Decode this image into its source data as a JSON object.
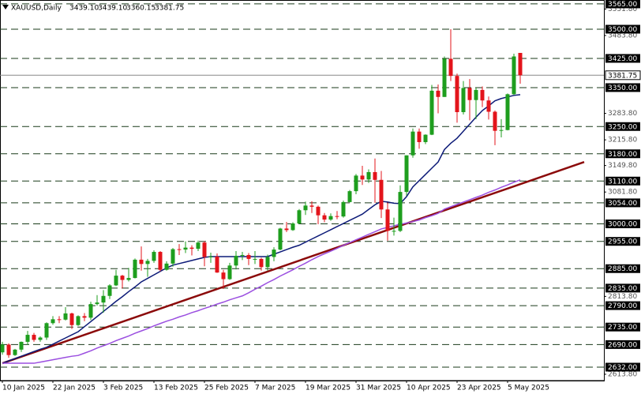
{
  "chart_data": {
    "type": "candlestick",
    "header": {
      "symbol": "XAUUSD,Daily",
      "ohlc": [
        "3439.10",
        "3439.10",
        "3360.15",
        "3381.75"
      ]
    },
    "categories": [
      "10 Jan 2025",
      null,
      null,
      null,
      null,
      null,
      null,
      null,
      "22 Jan 2025",
      null,
      null,
      null,
      null,
      null,
      null,
      null,
      "3 Feb 2025",
      null,
      null,
      null,
      null,
      null,
      null,
      null,
      "13 Feb 2025",
      null,
      null,
      null,
      null,
      null,
      null,
      null,
      "25 Feb 2025",
      null,
      null,
      null,
      null,
      null,
      null,
      null,
      "7 Mar 2025",
      null,
      null,
      null,
      null,
      null,
      null,
      null,
      "19 Mar 2025",
      null,
      null,
      null,
      null,
      null,
      null,
      null,
      "31 Mar 2025",
      null,
      null,
      null,
      null,
      null,
      null,
      null,
      "10 Apr 2025",
      null,
      null,
      null,
      null,
      null,
      null,
      null,
      "23 Apr 2025",
      null,
      null,
      null,
      null,
      null,
      null,
      null,
      "5 May 2025",
      null,
      null
    ],
    "open": [
      2670,
      2690,
      2663,
      2677,
      2697,
      2715,
      2702,
      2708,
      2745,
      2755,
      2754,
      2770,
      2740,
      2763,
      2759,
      2794,
      2798,
      2815,
      2842,
      2867,
      2856,
      2861,
      2908,
      2897,
      2905,
      2928,
      2882,
      2898,
      2935,
      2934,
      2939,
      2936,
      2952,
      2915,
      2916,
      2875,
      2858,
      2893,
      2918,
      2920,
      2910,
      2910,
      2889,
      2915,
      2934,
      2988,
      2984,
      3001,
      3035,
      3047,
      3044,
      3022,
      3011,
      3020,
      3019,
      3056,
      3084,
      3124,
      3114,
      3133,
      3113,
      3037,
      2982,
      2982,
      3082,
      3176,
      3237,
      3210,
      3229,
      3342,
      3326,
      3424,
      3380,
      3287,
      3349,
      3318,
      3344,
      3317,
      3288,
      3239,
      3241,
      3333,
      3439.1
    ],
    "high": [
      2697,
      2693,
      2679,
      2698,
      2725,
      2720,
      2711,
      2747,
      2763,
      2763,
      2786,
      2772,
      2765,
      2771,
      2800,
      2817,
      2830,
      2845,
      2882,
      2869,
      2887,
      2911,
      2942,
      2910,
      2932,
      2930,
      2904,
      2938,
      2948,
      2955,
      2945,
      2957,
      2956,
      2926,
      2924,
      2882,
      2900,
      2930,
      2928,
      2925,
      2930,
      2913,
      2921,
      2940,
      2990,
      3005,
      3004,
      3038,
      3057,
      3058,
      3047,
      3028,
      3027,
      3033,
      3060,
      3087,
      3128,
      3149,
      3140,
      3168,
      3136,
      3055,
      3016,
      3099,
      3176,
      3245,
      3245,
      3230,
      3357,
      3358,
      3430,
      3500,
      3386,
      3367,
      3372,
      3350,
      3353,
      3327,
      3291,
      3269,
      3335,
      3437,
      3439.1
    ],
    "low": [
      2664,
      2656,
      2661,
      2671,
      2689,
      2697,
      2697,
      2702,
      2741,
      2745,
      2752,
      2730,
      2738,
      2750,
      2753,
      2790,
      2772,
      2807,
      2840,
      2834,
      2852,
      2860,
      2880,
      2864,
      2900,
      2878,
      2880,
      2890,
      2920,
      2925,
      2919,
      2930,
      2891,
      2900,
      2874,
      2833,
      2856,
      2883,
      2907,
      2894,
      2897,
      2880,
      2880,
      2904,
      2932,
      2979,
      2982,
      2999,
      3023,
      3028,
      2999,
      3004,
      3008,
      3012,
      3016,
      3055,
      3076,
      3100,
      3105,
      3054,
      3015,
      2957,
      2970,
      2979,
      3072,
      3170,
      3193,
      3205,
      3228,
      3284,
      3326,
      3367,
      3260,
      3281,
      3266,
      3269,
      3300,
      3268,
      3202,
      3222,
      3240,
      3331,
      3360.15
    ],
    "close": [
      2690,
      2663,
      2677,
      2697,
      2715,
      2702,
      2708,
      2745,
      2755,
      2754,
      2770,
      2740,
      2763,
      2759,
      2794,
      2798,
      2815,
      2842,
      2867,
      2856,
      2861,
      2908,
      2897,
      2905,
      2928,
      2882,
      2898,
      2935,
      2934,
      2939,
      2936,
      2952,
      2915,
      2916,
      2875,
      2858,
      2893,
      2918,
      2920,
      2910,
      2910,
      2889,
      2915,
      2934,
      2988,
      2984,
      3001,
      3035,
      3047,
      3044,
      3022,
      3011,
      3020,
      3019,
      3056,
      3084,
      3124,
      3114,
      3133,
      3113,
      3037,
      2982,
      2982,
      3082,
      3176,
      3237,
      3210,
      3229,
      3342,
      3326,
      3424,
      3380,
      3287,
      3349,
      3318,
      3344,
      3317,
      3288,
      3239,
      3241,
      3333,
      3430,
      3381.75
    ],
    "colors": {
      "up": "#1e9e1e",
      "down": "#e3141b"
    },
    "lines": [
      {
        "color": "#0d1b78",
        "values": [
          2642,
          2648,
          2654,
          2660,
          2666,
          2672,
          2678,
          2683,
          2691,
          2699,
          2707,
          2715,
          2723,
          2736,
          2749,
          2762,
          2775,
          2788,
          2801,
          2813,
          2826,
          2838,
          2851,
          2860,
          2869,
          2878,
          2887,
          2894,
          2898,
          2902,
          2906,
          2910,
          2914,
          2916,
          2916,
          2916,
          2916,
          2916,
          2916,
          2916,
          2916,
          2916,
          2916,
          2922,
          2928,
          2934,
          2940,
          2945,
          2953,
          2961,
          2969,
          2977,
          2985,
          2993,
          3001,
          3009,
          3017,
          3025,
          3037,
          3049,
          3058,
          3056,
          3053,
          3052,
          3070,
          3095,
          3111,
          3127,
          3143,
          3159,
          3191,
          3207,
          3220,
          3238,
          3256,
          3274,
          3291,
          3303,
          3316,
          3322,
          3326,
          3330,
          3332
        ]
      },
      {
        "color": "#9b4fe0",
        "values": [
          2642,
          2642,
          2642,
          2642,
          2642,
          2642,
          2645,
          2648,
          2651,
          2654,
          2657,
          2660,
          2662,
          2668,
          2674,
          2681,
          2687,
          2693,
          2700,
          2706,
          2712,
          2719,
          2725,
          2731,
          2738,
          2744,
          2750,
          2755,
          2761,
          2766,
          2772,
          2777,
          2783,
          2788,
          2794,
          2799,
          2805,
          2810,
          2815,
          2823,
          2832,
          2840,
          2849,
          2857,
          2866,
          2874,
          2882,
          2891,
          2899,
          2908,
          2916,
          2923,
          2930,
          2937,
          2945,
          2952,
          2959,
          2966,
          2973,
          2980,
          2987,
          2991,
          2995,
          2999,
          3002,
          3006,
          3010,
          3016,
          3021,
          3027,
          3038,
          3044,
          3050,
          3056,
          3062,
          3068,
          3074,
          3081,
          3087,
          3094,
          3100,
          3107,
          3113
        ]
      }
    ],
    "trendline": {
      "color": "#8b0a0a",
      "values": [
        2642,
        3102
      ]
    },
    "ylim": [
      2597.5,
      3575
    ],
    "yticks": [
      {
        "value": 3551.8,
        "label": "3551.80"
      },
      {
        "value": 3483.8,
        "label": "3483.80"
      },
      {
        "value": 3283.8,
        "label": "3283.80"
      },
      {
        "value": 3215.8,
        "label": "3215.80"
      },
      {
        "value": 3149.8,
        "label": "3149.80"
      },
      {
        "value": 3081.8,
        "label": "3081.80"
      },
      {
        "value": 2813.8,
        "label": "2813.80"
      },
      {
        "value": 2613.8,
        "label": "2613.80"
      }
    ],
    "levels": [
      {
        "value": 3565,
        "label": "3565.00"
      },
      {
        "value": 3500,
        "label": "3500.00"
      },
      {
        "value": 3425,
        "label": "3425.00"
      },
      {
        "value": 3350,
        "label": "3350.00"
      },
      {
        "value": 3250,
        "label": "3250.00"
      },
      {
        "value": 3180,
        "label": "3180.00"
      },
      {
        "value": 3110,
        "label": "3110.00"
      },
      {
        "value": 3054,
        "label": "3054.00"
      },
      {
        "value": 3000,
        "label": "3000.00"
      },
      {
        "value": 2955,
        "label": "2955.00"
      },
      {
        "value": 2885,
        "label": "2885.00"
      },
      {
        "value": 2835,
        "label": "2835.00"
      },
      {
        "value": 2790,
        "label": "2790.00"
      },
      {
        "value": 2735,
        "label": "2735.00"
      },
      {
        "value": 2690,
        "label": "2690.00"
      },
      {
        "value": 2632,
        "label": "2632.00"
      }
    ],
    "current": {
      "value": 3381.75,
      "label": "3381.75"
    }
  }
}
